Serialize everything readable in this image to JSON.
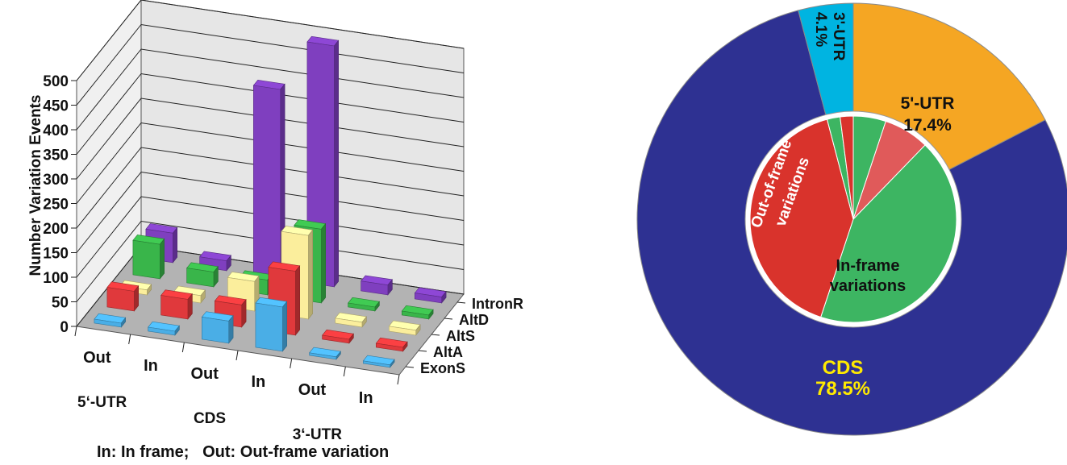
{
  "caption": "In: In frame;   Out: Out-frame variation",
  "colors": {
    "ExonS": "#4aaee6",
    "AltA": "#e0393c",
    "AltS": "#fbee9c",
    "AltD": "#39b54a",
    "IntronR": "#7f3fbf",
    "CDS": "#2e3192",
    "UTR5": "#f5a623",
    "UTR3": "#00b4e1",
    "inner_green": "#3db562",
    "inner_red": "#d9332c",
    "inner_pink": "#e05a5a",
    "floor": "#b3b3b3",
    "wall": "#f0f0f0",
    "cds_text": "#ffea00"
  },
  "chart_data": [
    {
      "type": "bar",
      "subtype": "3d-bar",
      "ylabel": "Number Variation Events",
      "ylim": [
        0,
        500
      ],
      "yticks": [
        "0",
        "50",
        "100",
        "150",
        "200",
        "250",
        "300",
        "350",
        "400",
        "450",
        "500"
      ],
      "categories": [
        "Out",
        "In",
        "Out",
        "In",
        "Out",
        "In"
      ],
      "groups": [
        "5‘-UTR",
        "CDS",
        "3‘-UTR"
      ],
      "series_labels": [
        "ExonS",
        "AltA",
        "AltS",
        "AltD",
        "IntronR"
      ],
      "series": [
        {
          "name": "ExonS",
          "values": [
            8,
            8,
            45,
            90,
            5,
            5
          ]
        },
        {
          "name": "AltA",
          "values": [
            40,
            40,
            45,
            130,
            8,
            8
          ]
        },
        {
          "name": "AltS",
          "values": [
            10,
            15,
            60,
            170,
            10,
            10
          ]
        },
        {
          "name": "AltD",
          "values": [
            70,
            30,
            30,
            150,
            8,
            8
          ]
        },
        {
          "name": "IntronR",
          "values": [
            60,
            20,
            385,
            490,
            20,
            12
          ]
        }
      ],
      "grid": true
    },
    {
      "type": "pie",
      "subtype": "donut",
      "outer": {
        "labels": [
          "5'-UTR",
          "CDS",
          "3'-UTR"
        ],
        "values": [
          17.4,
          78.5,
          4.1
        ],
        "value_labels": [
          "17.4%",
          "78.5%",
          "4.1%"
        ]
      },
      "inner": {
        "labels": [
          "In-frame variations",
          "Out-of-frame variations"
        ],
        "slices": [
          {
            "label": "",
            "value": 5
          },
          {
            "label": "",
            "value": 7
          },
          {
            "label": "In-frame variations",
            "value": 42
          },
          {
            "label": "Out-of-frame variations",
            "value": 40
          },
          {
            "label": "",
            "value": 2
          },
          {
            "label": "",
            "value": 2
          }
        ]
      }
    }
  ]
}
